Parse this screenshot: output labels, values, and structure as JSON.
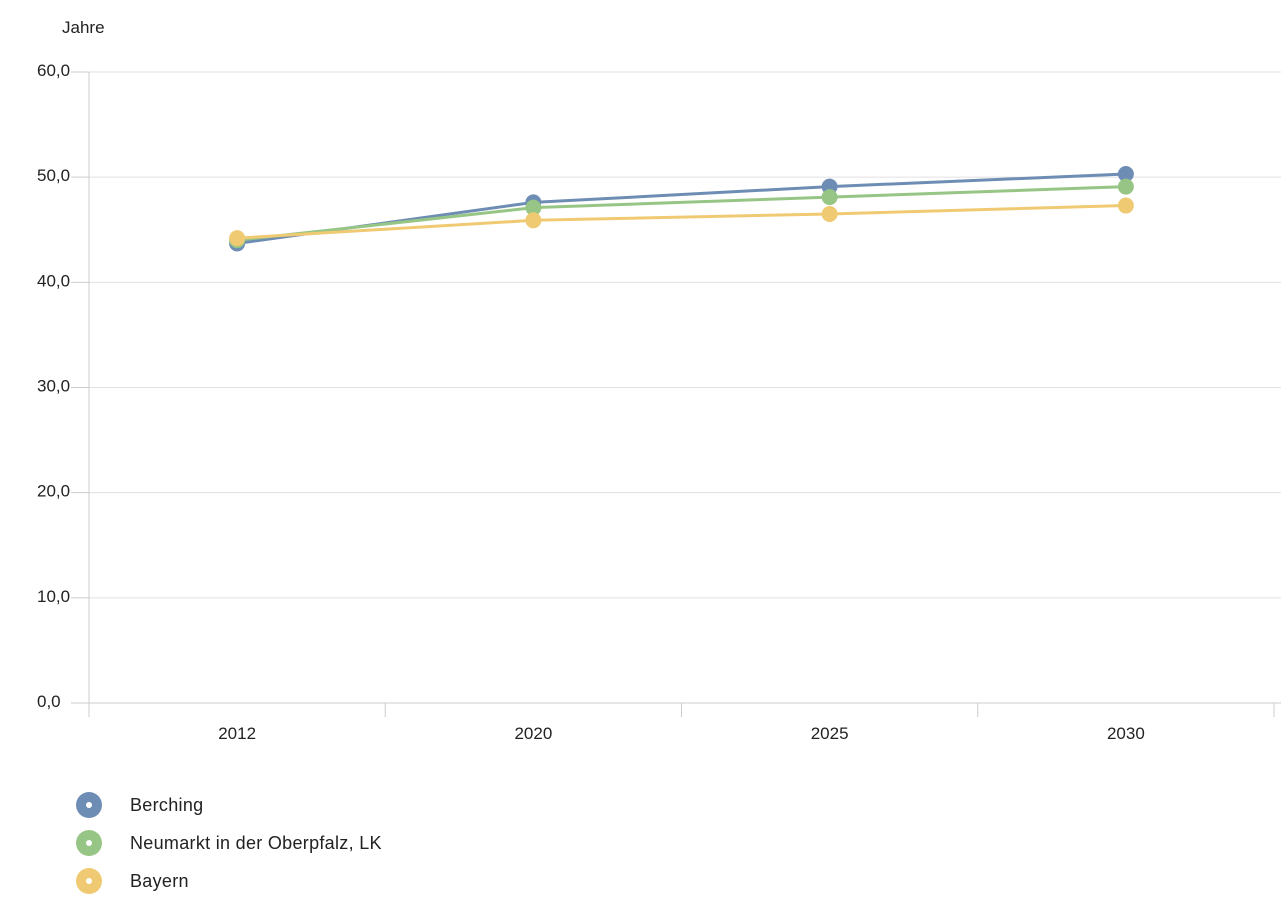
{
  "chart_data": {
    "type": "line",
    "ylabel": "Jahre",
    "xlabel": "",
    "categories": [
      "2012",
      "2020",
      "2025",
      "2030"
    ],
    "ylim": [
      0,
      60
    ],
    "yticks": [
      "0,0",
      "10,0",
      "20,0",
      "30,0",
      "40,0",
      "50,0",
      "60,0"
    ],
    "grid": true,
    "legend_position": "bottom-left",
    "series": [
      {
        "name": "Berching",
        "color": "#6e8db4",
        "values": [
          43.7,
          47.6,
          49.1,
          50.3
        ]
      },
      {
        "name": "Neumarkt in der Oberpfalz, LK",
        "color": "#97c585",
        "values": [
          44.0,
          47.1,
          48.1,
          49.1
        ]
      },
      {
        "name": "Bayern",
        "color": "#f0ca72",
        "values": [
          44.2,
          45.9,
          46.5,
          47.3
        ]
      }
    ]
  }
}
